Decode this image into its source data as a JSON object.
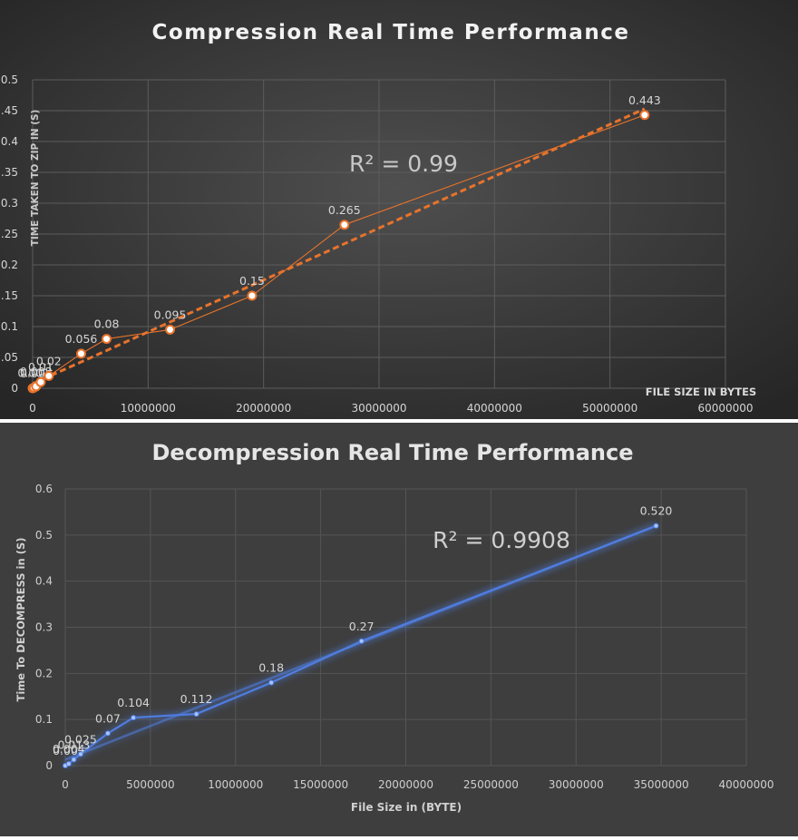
{
  "chart_data": [
    {
      "type": "scatter",
      "title": "Compression Real Time Performance",
      "xlabel": "FILE SIZE IN BYTES",
      "ylabel": "TIME TAKEN TO ZIP IN (S)",
      "xlim": [
        0,
        60000000
      ],
      "ylim": [
        0,
        0.5
      ],
      "xticks": [
        "0",
        "10000000",
        "20000000",
        "30000000",
        "40000000",
        "50000000",
        "60000000"
      ],
      "yticks": [
        "0",
        ".05",
        "0.1",
        ".15",
        "0.2",
        ".25",
        "0.3",
        ".35",
        "0.4",
        ".45",
        "0.5"
      ],
      "grid": true,
      "annotation": "R² = 0.99",
      "trendline": "linear",
      "series": [
        {
          "x": [
            0,
            100000,
            300000,
            700000,
            1400000,
            4200000,
            6400000,
            11900000,
            19000000,
            27000000,
            53000000
          ],
          "y": [
            0.0,
            0.001,
            0.003,
            0.01,
            0.02,
            0.056,
            0.08,
            0.095,
            0.15,
            0.265,
            0.443
          ],
          "labels": [
            "0.00",
            "0.001",
            "0.003",
            "0.01",
            "0.02",
            "0.056",
            "0.08",
            "0.095",
            "0.15",
            "0.265",
            "0.443"
          ],
          "color": "#e8732b"
        }
      ]
    },
    {
      "type": "line",
      "title": "Decompression Real Time Performance",
      "xlabel": "File Size in (BYTE)",
      "ylabel": "Time To DECOMPRESS in (S)",
      "xlim": [
        0,
        40000000
      ],
      "ylim": [
        0,
        0.6
      ],
      "xticks": [
        "0",
        "5000000",
        "10000000",
        "15000000",
        "20000000",
        "25000000",
        "30000000",
        "35000000",
        "40000000"
      ],
      "yticks": [
        "0",
        "0.1",
        "0.2",
        "0.3",
        "0.4",
        "0.5",
        "0.6"
      ],
      "grid": true,
      "annotation": "R² = 0.9908",
      "trendline": "linear",
      "series": [
        {
          "x": [
            0,
            200000,
            500000,
            900000,
            2500000,
            4000000,
            7700000,
            12100000,
            17400000,
            34700000
          ],
          "y": [
            0.0,
            0.004,
            0.013,
            0.025,
            0.07,
            0.104,
            0.112,
            0.18,
            0.27,
            0.52
          ],
          "labels": [
            "0.00",
            "0.004",
            "0.013",
            "0.025",
            "0.07",
            "0.104",
            "0.112",
            "0.18",
            "0.27",
            "0.520"
          ],
          "color": "#4f7de0"
        }
      ]
    }
  ]
}
